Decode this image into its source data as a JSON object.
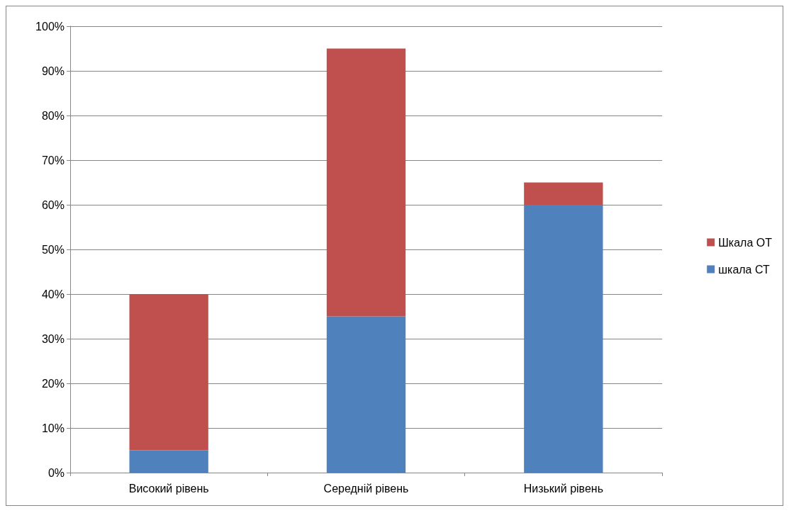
{
  "chart_data": {
    "type": "bar",
    "stacked": true,
    "categories": [
      "Високий рівень",
      "Середній рівень",
      "Низький рівень"
    ],
    "series": [
      {
        "name": "шкала СТ",
        "color": "#4f81bd",
        "values": [
          5,
          35,
          60
        ]
      },
      {
        "name": "Шкала ОТ",
        "color": "#c0504d",
        "values": [
          35,
          60,
          5
        ]
      }
    ],
    "ylim": [
      0,
      100
    ],
    "yticks": [
      {
        "value": 0,
        "label": "0%"
      },
      {
        "value": 10,
        "label": "10%"
      },
      {
        "value": 20,
        "label": "20%"
      },
      {
        "value": 30,
        "label": "30%"
      },
      {
        "value": 40,
        "label": "40%"
      },
      {
        "value": 50,
        "label": "50%"
      },
      {
        "value": 60,
        "label": "60%"
      },
      {
        "value": 70,
        "label": "70%"
      },
      {
        "value": 80,
        "label": "80%"
      },
      {
        "value": 90,
        "label": "90%"
      },
      {
        "value": 100,
        "label": "100%"
      }
    ],
    "grid": "y",
    "legend": "right"
  }
}
